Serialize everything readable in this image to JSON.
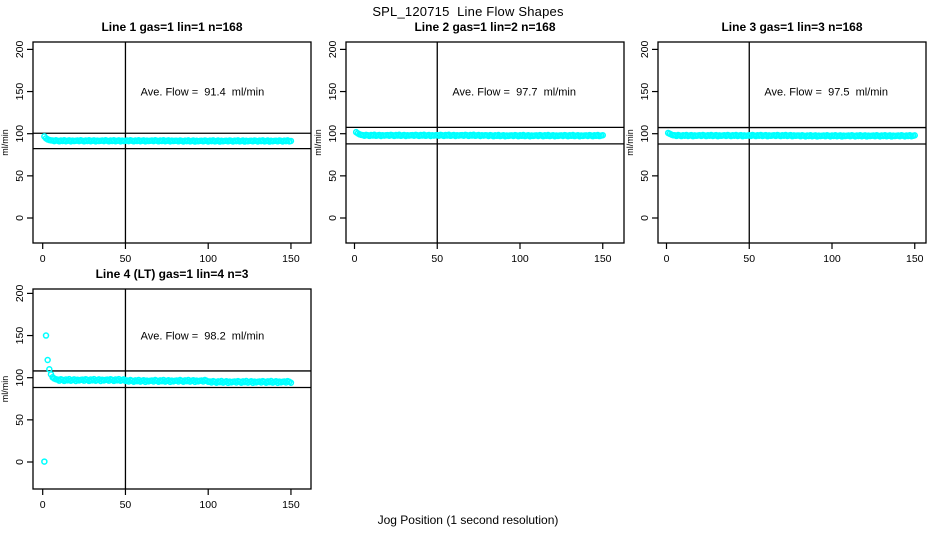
{
  "title": "SPL_120715  Line Flow Shapes",
  "xlabel": "Jog Position (1 second resolution)",
  "point_color": "#00FFFF",
  "line_color": "#000000",
  "chart_data": [
    {
      "type": "scatter",
      "title": "Line 1 gas=1 lin=1 n=168",
      "annotation": "Ave. Flow =  91.4  ml/min",
      "ave_flow_ml_min": 91.4,
      "ylabel": "ml/min",
      "xlim": [
        0,
        150
      ],
      "ylim": [
        0,
        200
      ],
      "x_ticks": [
        0,
        50,
        100,
        150
      ],
      "y_ticks": [
        0,
        50,
        100,
        150,
        200
      ],
      "vline_x": 50,
      "hlines": [
        100.5,
        82.3
      ],
      "grid": false,
      "series": {
        "x_start": 1,
        "x_step": 1,
        "y": [
          96.8,
          94.5,
          93.2,
          92.5,
          92.1,
          91.9,
          91.2,
          92.2,
          91.7,
          91.0,
          92.0,
          91.4,
          92.3,
          91.1,
          91.6,
          92.1,
          90.9,
          91.8,
          91.3,
          91.7,
          91.9,
          91.2,
          92.2,
          91.7,
          91.0,
          92.0,
          91.4,
          92.3,
          91.1,
          91.6,
          92.1,
          90.9,
          91.8,
          91.3,
          91.7,
          91.9,
          91.2,
          92.2,
          91.7,
          91.0,
          92.0,
          91.4,
          92.3,
          91.1,
          91.6,
          92.1,
          90.9,
          91.8,
          91.3,
          91.7,
          91.9,
          91.2,
          92.2,
          91.7,
          91.0,
          92.0,
          91.4,
          92.3,
          91.1,
          91.6,
          92.1,
          90.9,
          91.8,
          91.3,
          91.7,
          91.9,
          91.2,
          92.2,
          91.7,
          91.0,
          92.0,
          91.4,
          92.3,
          91.1,
          91.6,
          92.1,
          90.9,
          91.8,
          91.3,
          91.7,
          91.7,
          91.0,
          92.0,
          91.5,
          90.8,
          91.8,
          91.2,
          92.1,
          90.9,
          91.4,
          91.9,
          90.7,
          91.6,
          91.1,
          91.5,
          91.7,
          91.0,
          92.0,
          91.5,
          90.8,
          91.8,
          91.2,
          92.1,
          90.9,
          91.4,
          91.9,
          90.7,
          91.6,
          91.1,
          91.5,
          91.7,
          91.0,
          92.0,
          91.5,
          90.8,
          91.8,
          91.2,
          92.1,
          90.9,
          91.4,
          91.9,
          90.7,
          91.6,
          91.1,
          91.5,
          91.7,
          91.0,
          92.0,
          91.5,
          90.8,
          91.8,
          91.2,
          92.1,
          90.9,
          91.4,
          91.9,
          90.7,
          91.6,
          91.1,
          91.5,
          91.7,
          91.0,
          92.0,
          91.5,
          90.8,
          91.8,
          91.2,
          92.1,
          90.9,
          91.4
        ]
      },
      "outliers": []
    },
    {
      "type": "scatter",
      "title": "Line 2 gas=1 lin=2 n=168",
      "annotation": "Ave. Flow =  97.7  ml/min",
      "ave_flow_ml_min": 97.7,
      "ylabel": "ml/min",
      "xlim": [
        0,
        150
      ],
      "ylim": [
        0,
        200
      ],
      "x_ticks": [
        0,
        50,
        100,
        150
      ],
      "y_ticks": [
        0,
        50,
        100,
        150,
        200
      ],
      "vline_x": 50,
      "hlines": [
        107.5,
        87.9
      ],
      "grid": false,
      "series": {
        "x_start": 1,
        "x_step": 1,
        "y": [
          101.8,
          100.4,
          99.3,
          98.6,
          98.3,
          97.6,
          98.6,
          98.1,
          97.4,
          98.4,
          97.8,
          98.7,
          97.5,
          98.0,
          98.5,
          97.3,
          98.2,
          97.7,
          98.1,
          98.3,
          97.6,
          98.6,
          98.1,
          97.4,
          98.4,
          97.8,
          98.7,
          97.5,
          98.0,
          98.5,
          97.3,
          98.2,
          97.7,
          98.1,
          98.3,
          97.6,
          98.6,
          98.1,
          97.4,
          98.4,
          97.8,
          98.7,
          97.5,
          98.0,
          98.5,
          97.3,
          98.2,
          97.7,
          98.1,
          98.3,
          97.6,
          98.6,
          98.1,
          97.4,
          98.4,
          97.8,
          98.7,
          97.5,
          98.0,
          98.5,
          97.3,
          98.2,
          97.7,
          98.1,
          98.3,
          97.6,
          98.6,
          98.1,
          97.4,
          98.4,
          97.8,
          98.7,
          97.5,
          98.0,
          98.5,
          97.3,
          98.2,
          97.7,
          98.1,
          98.0,
          97.3,
          98.3,
          97.8,
          97.1,
          98.1,
          97.5,
          98.4,
          97.2,
          97.7,
          98.2,
          97.0,
          97.9,
          97.4,
          97.8,
          98.0,
          97.3,
          98.3,
          97.8,
          97.1,
          98.1,
          97.5,
          98.4,
          97.2,
          97.7,
          98.2,
          97.0,
          97.9,
          97.4,
          97.8,
          98.0,
          97.3,
          98.3,
          97.8,
          97.1,
          98.1,
          97.5,
          98.4,
          97.2,
          97.7,
          98.2,
          97.0,
          97.9,
          97.4,
          97.8,
          98.0,
          97.3,
          98.3,
          97.8,
          97.1,
          98.1,
          97.5,
          98.4,
          97.2,
          97.7,
          98.2,
          97.0,
          97.9,
          97.4,
          97.8,
          98.0,
          97.3,
          98.3,
          97.8,
          97.1,
          98.1,
          97.5,
          98.4,
          97.2,
          97.7,
          98.2
        ]
      },
      "outliers": []
    },
    {
      "type": "scatter",
      "title": "Line 3 gas=1 lin=3 n=168",
      "annotation": "Ave. Flow =  97.5  ml/min",
      "ave_flow_ml_min": 97.5,
      "ylabel": "ml/min",
      "xlim": [
        0,
        150
      ],
      "ylim": [
        0,
        200
      ],
      "x_ticks": [
        0,
        50,
        100,
        150
      ],
      "y_ticks": [
        0,
        50,
        100,
        150,
        200
      ],
      "vline_x": 50,
      "hlines": [
        107.3,
        87.8
      ],
      "grid": false,
      "series": {
        "x_start": 1,
        "x_step": 1,
        "y": [
          100.9,
          99.9,
          98.9,
          98.2,
          98.1,
          97.4,
          98.4,
          97.9,
          97.2,
          98.2,
          97.6,
          98.5,
          97.3,
          97.8,
          98.3,
          97.1,
          98.0,
          97.5,
          97.9,
          98.1,
          97.4,
          98.4,
          97.9,
          97.2,
          98.2,
          97.6,
          98.5,
          97.3,
          97.8,
          98.3,
          97.1,
          98.0,
          97.5,
          97.9,
          98.1,
          97.4,
          98.4,
          97.9,
          97.2,
          98.2,
          97.6,
          98.5,
          97.3,
          97.8,
          98.3,
          97.1,
          98.0,
          97.5,
          97.9,
          98.1,
          97.4,
          98.4,
          97.9,
          97.2,
          98.2,
          97.6,
          98.5,
          97.3,
          97.8,
          98.3,
          97.1,
          98.0,
          97.5,
          97.9,
          98.1,
          97.4,
          98.4,
          97.9,
          97.2,
          98.2,
          97.6,
          98.5,
          97.3,
          97.8,
          98.3,
          97.1,
          98.0,
          97.5,
          97.9,
          97.8,
          97.1,
          98.1,
          97.6,
          96.9,
          97.9,
          97.3,
          98.2,
          97.0,
          97.5,
          98.0,
          96.8,
          97.7,
          97.2,
          97.6,
          97.8,
          97.1,
          98.1,
          97.6,
          96.9,
          97.9,
          97.3,
          98.2,
          97.0,
          97.5,
          98.0,
          96.8,
          97.7,
          97.2,
          97.6,
          97.8,
          97.1,
          98.1,
          97.6,
          96.9,
          97.9,
          97.3,
          98.2,
          97.0,
          97.5,
          98.0,
          96.8,
          97.7,
          97.2,
          97.6,
          97.8,
          97.1,
          98.1,
          97.6,
          96.9,
          97.9,
          97.3,
          98.2,
          97.0,
          97.5,
          98.0,
          96.8,
          97.7,
          97.2,
          97.6,
          97.8,
          97.1,
          98.1,
          97.6,
          96.9,
          97.9,
          97.3,
          98.2,
          97.0,
          97.5,
          98.0
        ]
      },
      "outliers": []
    },
    {
      "type": "scatter",
      "title": "Line 4 (LT) gas=1 lin=4 n=3",
      "annotation": "Ave. Flow =  98.2  ml/min",
      "ave_flow_ml_min": 98.2,
      "ylabel": "ml/min",
      "xlim": [
        0,
        150
      ],
      "ylim": [
        0,
        200
      ],
      "x_ticks": [
        0,
        50,
        100,
        150
      ],
      "y_ticks": [
        0,
        50,
        100,
        150,
        200
      ],
      "vline_x": 50,
      "hlines": [
        108.0,
        88.4
      ],
      "grid": false,
      "series": {
        "x_start": 4,
        "x_step": 1,
        "y": [
          110.0,
          104.0,
          100.5,
          99.0,
          98.2,
          97.7,
          96.5,
          98.2,
          97.4,
          96.2,
          97.8,
          96.9,
          98.3,
          96.4,
          97.2,
          98.0,
          96.1,
          97.6,
          96.7,
          97.4,
          97.7,
          96.5,
          98.2,
          97.4,
          96.2,
          97.8,
          96.9,
          98.3,
          96.4,
          97.2,
          98.0,
          96.1,
          97.6,
          96.7,
          97.4,
          97.7,
          96.5,
          98.2,
          97.4,
          96.2,
          97.8,
          96.9,
          98.3,
          96.4,
          97.2,
          98.0,
          96.1,
          96.7,
          95.5,
          97.2,
          96.4,
          95.2,
          96.8,
          95.9,
          97.3,
          95.4,
          96.2,
          97.0,
          95.1,
          96.6,
          95.7,
          96.4,
          96.7,
          95.5,
          97.2,
          96.4,
          95.2,
          96.8,
          95.9,
          97.3,
          95.4,
          96.2,
          97.0,
          95.1,
          96.6,
          95.7,
          96.4,
          96.7,
          95.5,
          97.2,
          96.4,
          95.2,
          96.8,
          95.9,
          97.3,
          95.4,
          96.2,
          97.0,
          95.1,
          96.6,
          95.7,
          96.4,
          96.7,
          95.5,
          97.2,
          96.4,
          95.2,
          95.5,
          94.3,
          96.0,
          95.2,
          94.0,
          95.6,
          94.7,
          96.1,
          94.2,
          95.0,
          95.8,
          93.9,
          95.4,
          94.5,
          95.2,
          95.5,
          94.3,
          96.0,
          95.2,
          94.0,
          95.6,
          94.7,
          96.1,
          94.2,
          95.0,
          95.8,
          93.9,
          95.4,
          94.5,
          95.2,
          95.5,
          94.3,
          96.0,
          95.2,
          94.0,
          95.6,
          94.7,
          96.1,
          94.2,
          95.0,
          95.8,
          93.9,
          95.4,
          94.5,
          95.2,
          95.5,
          94.3,
          96.0,
          95.2,
          94.0
        ]
      },
      "outliers": [
        [
          1,
          0.5
        ],
        [
          2,
          150
        ],
        [
          3,
          121
        ]
      ]
    }
  ]
}
